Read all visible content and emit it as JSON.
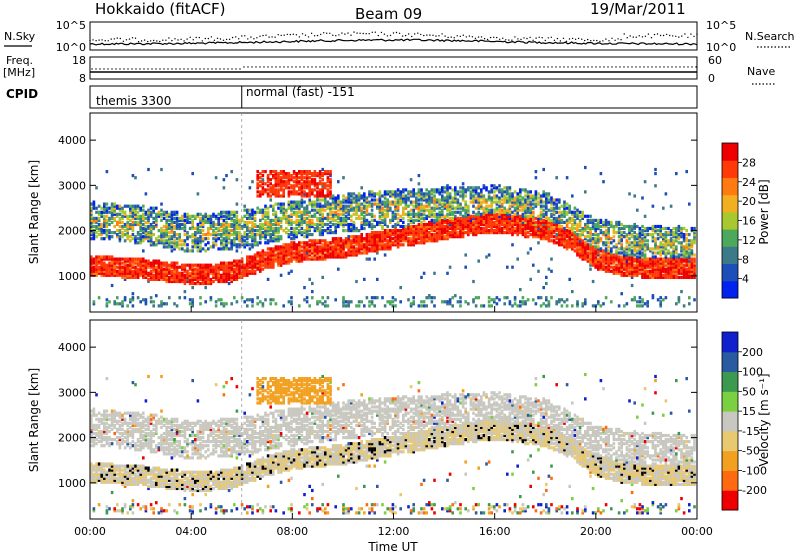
{
  "header": {
    "title": "Hokkaido (fitACF)",
    "beam": "Beam 09",
    "date": "19/Mar/2011"
  },
  "panel_labels": {
    "nsky": "N.Sky",
    "nsearch": "N.Search",
    "freq_top": "Freq.",
    "freq_unit": "[MHz]",
    "nave": "Nave",
    "cpid": "CPID"
  },
  "small_axes": {
    "noise_left_ticks": [
      "10^5",
      "10^0"
    ],
    "noise_right_ticks": [
      "10^5",
      "10^0"
    ],
    "freq_left_ticks": [
      "18",
      "8"
    ],
    "nave_right_ticks": [
      "60",
      "0"
    ]
  },
  "cpid_segments": [
    {
      "label": "themis 3300",
      "start_hour": 0
    },
    {
      "label": "normal (fast) -151",
      "start_hour": 6
    }
  ],
  "chart_data": [
    {
      "type": "heatmap",
      "quantity": "Power",
      "xlabel": "",
      "ylabel": "Slant Range [km]",
      "x_ticks": [
        "00:00",
        "04:00",
        "08:00",
        "12:00",
        "16:00",
        "20:00",
        "00:00"
      ],
      "xlim_hours": [
        0,
        24
      ],
      "ylim": [
        200,
        4600
      ],
      "y_ticks": [
        1000,
        2000,
        3000,
        4000
      ],
      "colorbar": {
        "label": "Power [dB]",
        "ticks": [
          28,
          24,
          20,
          16,
          12,
          8,
          4
        ],
        "range": [
          0,
          32
        ],
        "colors": [
          "#0022ee",
          "#1c4fb8",
          "#3c7a8a",
          "#4ca85a",
          "#a8c830",
          "#f2b020",
          "#ff7a10",
          "#ff3a08",
          "#ee0000"
        ]
      },
      "scatter_bands": [
        {
          "name": "ground",
          "points": [
            [
              0,
              1150
            ],
            [
              2,
              1080
            ],
            [
              4,
              950
            ],
            [
              5.5,
              1000
            ],
            [
              6,
              1100
            ],
            [
              7,
              1300
            ],
            [
              8,
              1450
            ],
            [
              10,
              1550
            ],
            [
              12,
              1750
            ],
            [
              14,
              1950
            ],
            [
              16,
              2100
            ],
            [
              18,
              1950
            ],
            [
              19,
              1700
            ],
            [
              20,
              1300
            ],
            [
              21,
              1150
            ],
            [
              22,
              1100
            ],
            [
              24,
              1100
            ]
          ],
          "power": 28
        },
        {
          "name": "ionospheric",
          "points": [
            [
              0,
              2200
            ],
            [
              2,
              2100
            ],
            [
              4,
              1900
            ],
            [
              6,
              2000
            ],
            [
              8,
              2200
            ],
            [
              10,
              2350
            ],
            [
              12,
              2450
            ],
            [
              14,
              2500
            ],
            [
              16,
              2550
            ],
            [
              18,
              2400
            ],
            [
              20,
              1800
            ],
            [
              22,
              1650
            ],
            [
              24,
              1600
            ]
          ],
          "power": 14
        }
      ]
    },
    {
      "type": "heatmap",
      "quantity": "Velocity",
      "xlabel": "Time UT",
      "ylabel": "Slant Range [km]",
      "x_ticks": [
        "00:00",
        "04:00",
        "08:00",
        "12:00",
        "16:00",
        "20:00",
        "00:00"
      ],
      "xlim_hours": [
        0,
        24
      ],
      "ylim": [
        200,
        4600
      ],
      "y_ticks": [
        1000,
        2000,
        3000,
        4000
      ],
      "colorbar": {
        "label": "Velocity [m s⁻¹]",
        "ticks": [
          200,
          100,
          50,
          15,
          -15,
          -50,
          -100,
          -200
        ],
        "range": [
          -250,
          250
        ],
        "colors": [
          "#ee0000",
          "#ff6a10",
          "#f2a020",
          "#e8c870",
          "#c8c8c0",
          "#7ad040",
          "#3c9a50",
          "#2a5aa0",
          "#1020cc"
        ]
      }
    }
  ]
}
